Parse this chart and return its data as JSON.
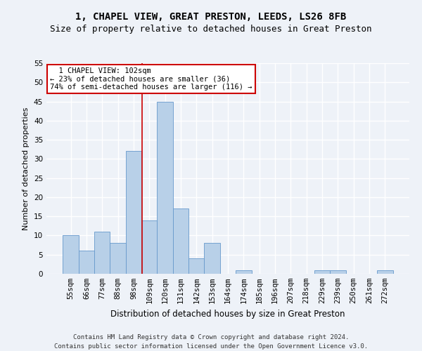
{
  "title": "1, CHAPEL VIEW, GREAT PRESTON, LEEDS, LS26 8FB",
  "subtitle": "Size of property relative to detached houses in Great Preston",
  "xlabel": "Distribution of detached houses by size in Great Preston",
  "ylabel": "Number of detached properties",
  "footer_line1": "Contains HM Land Registry data © Crown copyright and database right 2024.",
  "footer_line2": "Contains public sector information licensed under the Open Government Licence v3.0.",
  "categories": [
    "55sqm",
    "66sqm",
    "77sqm",
    "88sqm",
    "98sqm",
    "109sqm",
    "120sqm",
    "131sqm",
    "142sqm",
    "153sqm",
    "164sqm",
    "174sqm",
    "185sqm",
    "196sqm",
    "207sqm",
    "218sqm",
    "229sqm",
    "239sqm",
    "250sqm",
    "261sqm",
    "272sqm"
  ],
  "values": [
    10,
    6,
    11,
    8,
    32,
    14,
    45,
    17,
    4,
    8,
    0,
    1,
    0,
    0,
    0,
    0,
    1,
    1,
    0,
    0,
    1
  ],
  "bar_color": "#b8d0e8",
  "bar_edge_color": "#6699cc",
  "annotation_line1": "  1 CHAPEL VIEW: 102sqm",
  "annotation_line2": "← 23% of detached houses are smaller (36)",
  "annotation_line3": "74% of semi-detached houses are larger (116) →",
  "annotation_box_color": "white",
  "annotation_box_edge_color": "#cc0000",
  "vline_index": 4.53,
  "vline_color": "#cc0000",
  "ylim": [
    0,
    55
  ],
  "yticks": [
    0,
    5,
    10,
    15,
    20,
    25,
    30,
    35,
    40,
    45,
    50,
    55
  ],
  "background_color": "#eef2f8",
  "grid_color": "white",
  "title_fontsize": 10,
  "subtitle_fontsize": 9,
  "xlabel_fontsize": 8.5,
  "ylabel_fontsize": 8,
  "tick_fontsize": 7.5,
  "annotation_fontsize": 7.5,
  "footer_fontsize": 6.5
}
